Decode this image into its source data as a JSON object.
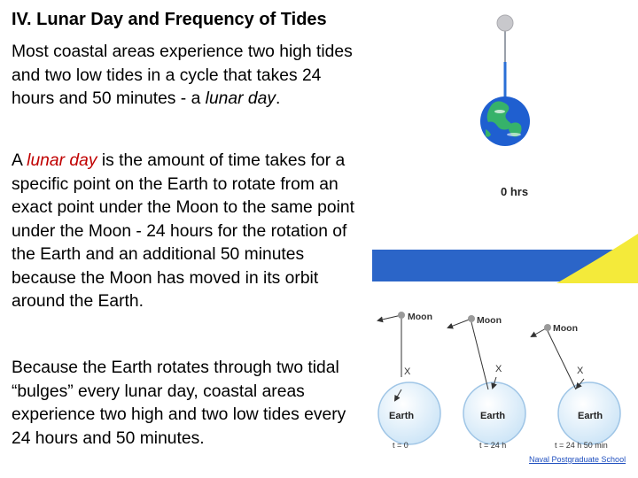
{
  "slide": {
    "title": "IV. Lunar Day and Frequency of Tides",
    "p1": {
      "text1": "Most coastal areas experience two high tides and two low tides in a cycle that takes 24 hours and 50 minutes - a ",
      "term": "lunar day",
      "text2": "."
    },
    "p2": {
      "text1": "A ",
      "term": "lunar day",
      "text2": " is the amount of time takes for a specific point on the Earth to rotate from an exact point under the Moon to the same point under the Moon - 24 hours for the rotation of the Earth and an additional 50 minutes because the Moon has moved in its orbit around the Earth."
    },
    "p3": "Because the Earth rotates through two tidal “bulges” every lunar day, coastal areas experience two high and two low tides every 24 hours and 50 minutes."
  },
  "animation": {
    "time_label": "0 hrs",
    "colors": {
      "ocean": "#2b65c8",
      "moonlight": "#f4ea3a",
      "moon": "#c8c8cc",
      "stem": "#2a6fd6"
    }
  },
  "diagram": {
    "moon_label": "Moon",
    "earth_label": "Earth",
    "point_label": "X",
    "times": [
      "t = 0",
      "t = 24 h",
      "t = 24 h 50 min"
    ]
  },
  "credit": "Naval Postgraduate School"
}
